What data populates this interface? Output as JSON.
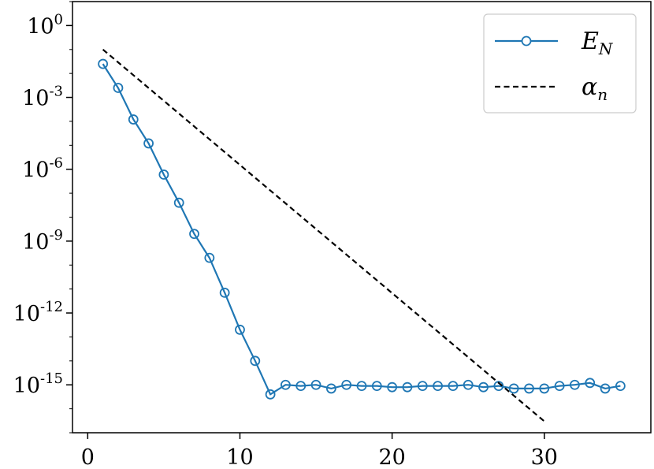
{
  "chart_data": {
    "type": "line",
    "yscale": "log",
    "xlim": [
      -1,
      37
    ],
    "ylim_exponent": [
      -17,
      1
    ],
    "x_ticks": [
      0,
      10,
      20,
      30
    ],
    "y_tick_exponents": [
      0,
      -3,
      -6,
      -9,
      -12,
      -15
    ],
    "y_tick_base": "10",
    "y_tick_labels": [
      "0",
      "-3",
      "-6",
      "-9",
      "-12",
      "-15"
    ],
    "grid": false,
    "legend_position": "top-right",
    "series": [
      {
        "name": "E_N",
        "name_main": "E",
        "name_sub": "N",
        "color": "#1f77b4",
        "line_style": "solid",
        "marker": "circle-open",
        "x": [
          1,
          2,
          3,
          4,
          5,
          6,
          7,
          8,
          9,
          10,
          11,
          12,
          13,
          14,
          15,
          16,
          17,
          18,
          19,
          20,
          21,
          22,
          23,
          24,
          25,
          26,
          27,
          28,
          29,
          30,
          31,
          32,
          33,
          34,
          35
        ],
        "y": [
          0.025,
          0.0025,
          0.00012,
          1.2e-05,
          6e-07,
          4e-08,
          2e-09,
          2e-10,
          7e-12,
          2e-13,
          1e-14,
          4e-16,
          1e-15,
          9e-16,
          1e-15,
          7e-16,
          1e-15,
          9e-16,
          9e-16,
          8e-16,
          8e-16,
          9e-16,
          9e-16,
          9e-16,
          1e-15,
          8e-16,
          9e-16,
          7e-16,
          7e-16,
          7e-16,
          9e-16,
          1e-15,
          1.2e-15,
          7e-16,
          9e-16
        ]
      },
      {
        "name": "α_n",
        "name_main": "α",
        "name_sub": "n",
        "color": "#000000",
        "line_style": "dashed",
        "marker": "none",
        "x": [
          1,
          30
        ],
        "y": [
          0.1,
          3e-17
        ]
      }
    ]
  }
}
